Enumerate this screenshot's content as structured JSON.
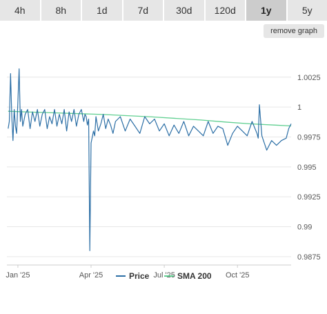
{
  "range_tabs": [
    {
      "label": "4h"
    },
    {
      "label": "8h"
    },
    {
      "label": "1d"
    },
    {
      "label": "7d"
    },
    {
      "label": "30d"
    },
    {
      "label": "120d"
    },
    {
      "label": "1y",
      "active": true
    },
    {
      "label": "5y"
    }
  ],
  "remove_graph_label": "remove graph",
  "chart_data": {
    "type": "line",
    "x_tick_labels": [
      "Jan '25",
      "Apr '25",
      "Jul '25",
      "Oct '25"
    ],
    "x_tick_positions": [
      1,
      4,
      7,
      10
    ],
    "xlim": [
      0.55,
      12.2
    ],
    "ylim": [
      0.9868,
      1.0052
    ],
    "y_ticks": [
      0.9875,
      0.99,
      0.9925,
      0.995,
      0.9975,
      1,
      1.0025
    ],
    "y_tick_labels": [
      "0.9875",
      "0.99",
      "0.9925",
      "0.995",
      "0.9975",
      "1",
      "1.0025"
    ],
    "grid": true,
    "legend_position": "bottom",
    "series": [
      {
        "name": "Price",
        "color": "#2b6ea5",
        "x": [
          0.6,
          0.65,
          0.7,
          0.75,
          0.8,
          0.85,
          0.9,
          0.95,
          1,
          1.05,
          1.1,
          1.15,
          1.2,
          1.3,
          1.4,
          1.5,
          1.6,
          1.7,
          1.8,
          1.9,
          2,
          2.1,
          2.2,
          2.3,
          2.4,
          2.5,
          2.6,
          2.7,
          2.8,
          2.9,
          3,
          3.1,
          3.2,
          3.3,
          3.4,
          3.5,
          3.6,
          3.7,
          3.75,
          3.8,
          3.85,
          3.9,
          3.95,
          4,
          4.05,
          4.1,
          4.15,
          4.2,
          4.3,
          4.4,
          4.5,
          4.6,
          4.7,
          4.8,
          4.9,
          5,
          5.2,
          5.4,
          5.6,
          5.8,
          6,
          6.2,
          6.4,
          6.6,
          6.8,
          7,
          7.2,
          7.4,
          7.6,
          7.8,
          8,
          8.2,
          8.4,
          8.6,
          8.8,
          9,
          9.2,
          9.4,
          9.6,
          9.8,
          10,
          10.2,
          10.4,
          10.6,
          10.8,
          10.85,
          10.9,
          11,
          11.2,
          11.4,
          11.6,
          11.8,
          12,
          12.1,
          12.2
        ],
        "values": [
          0.9982,
          0.9988,
          1.0028,
          0.9992,
          0.9972,
          0.9998,
          0.9984,
          0.9978,
          1.0004,
          1.0032,
          0.9988,
          0.9998,
          0.9984,
          0.9994,
          0.9998,
          0.9982,
          0.9996,
          0.9988,
          0.9998,
          0.9984,
          0.9994,
          0.9998,
          0.9982,
          0.9992,
          0.9986,
          0.9998,
          0.9984,
          0.9994,
          0.9986,
          0.9998,
          0.998,
          0.9996,
          0.9988,
          0.9998,
          0.9984,
          0.9994,
          0.9998,
          0.9988,
          0.9994,
          0.9992,
          0.9985,
          0.999,
          0.988,
          0.997,
          0.9975,
          0.998,
          0.9976,
          0.9992,
          0.998,
          0.9986,
          0.9994,
          0.9982,
          0.999,
          0.9985,
          0.9978,
          0.9988,
          0.9992,
          0.998,
          0.999,
          0.9984,
          0.9978,
          0.9992,
          0.9986,
          0.999,
          0.998,
          0.9986,
          0.9976,
          0.9985,
          0.9978,
          0.9988,
          0.9976,
          0.9984,
          0.998,
          0.9976,
          0.9988,
          0.9978,
          0.9984,
          0.9982,
          0.9968,
          0.9978,
          0.9984,
          0.998,
          0.9976,
          0.9988,
          0.9978,
          0.9974,
          1.0002,
          0.9976,
          0.9964,
          0.9972,
          0.9968,
          0.9972,
          0.9974,
          0.9982,
          0.9986
        ],
        "stroke_width": 1.2
      },
      {
        "name": "SMA 200",
        "color": "#5fcf90",
        "x": [
          0.6,
          1.5,
          2.5,
          3.5,
          4.5,
          5.5,
          6.5,
          7.5,
          8.5,
          9.5,
          10.5,
          11.5,
          12.2
        ],
        "values": [
          0.99965,
          0.99958,
          0.99952,
          0.99945,
          0.99938,
          0.99928,
          0.99918,
          0.99905,
          0.99892,
          0.99875,
          0.9986,
          0.9985,
          0.99842
        ],
        "stroke_width": 1.3
      }
    ]
  }
}
